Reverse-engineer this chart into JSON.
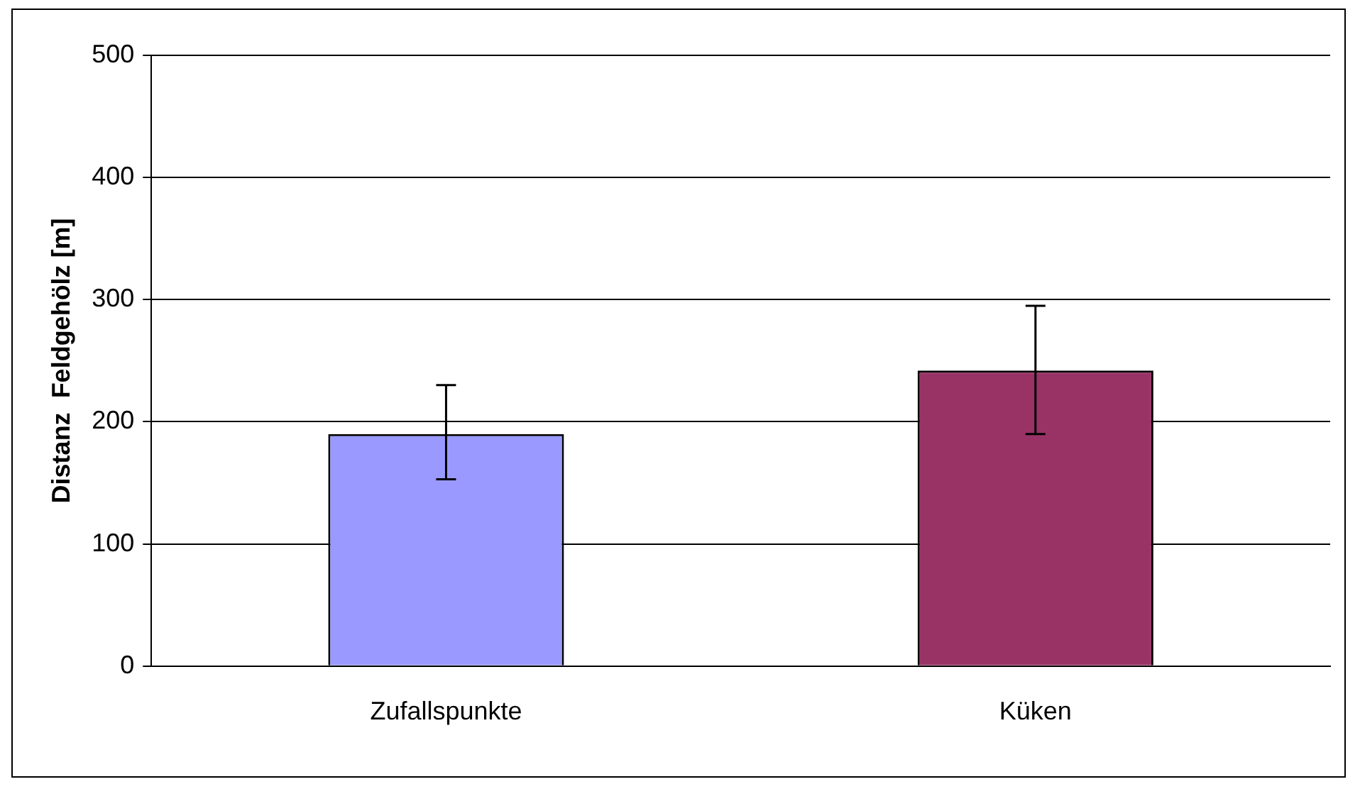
{
  "chart_data": {
    "type": "bar",
    "ylabel": "Distanz  Feldgehölz [m]",
    "categories": [
      "Zufallspunkte",
      "Küken"
    ],
    "values": [
      190,
      242
    ],
    "colors": [
      "#9999ff",
      "#993366"
    ],
    "errors": [
      [
        153,
        230
      ],
      [
        190,
        295
      ]
    ],
    "ylim": [
      0,
      500
    ],
    "yticks": [
      0,
      100,
      200,
      300,
      400,
      500
    ],
    "grid": "y"
  }
}
